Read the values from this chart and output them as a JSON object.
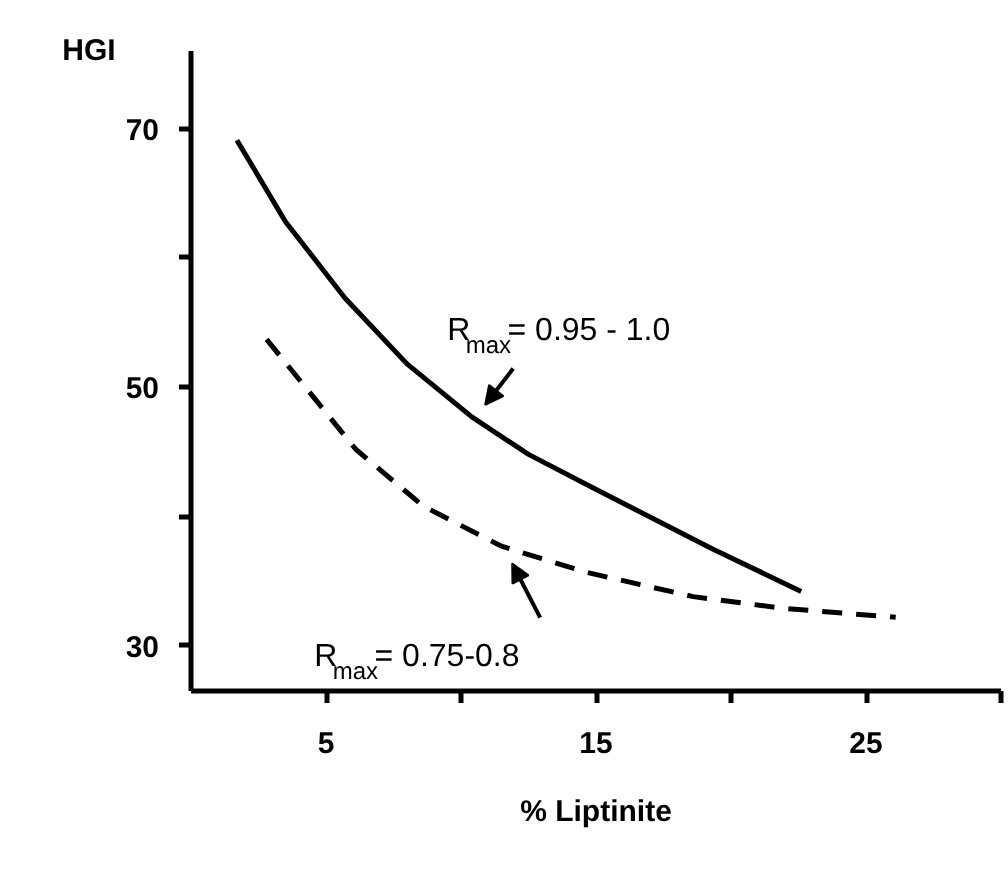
{
  "chart_data": {
    "type": "line",
    "xlabel": "% Liptinite",
    "ylabel": "HGI",
    "xlim": [
      0,
      30
    ],
    "ylim": [
      26.5,
      76
    ],
    "xticks": [
      5,
      {
        "value": 10,
        "label": null
      },
      15,
      {
        "value": 20,
        "label": null
      },
      25,
      {
        "value": 30,
        "label": null
      }
    ],
    "yticks": [
      {
        "value": 30,
        "label": "30"
      },
      {
        "value": 40,
        "label": null
      },
      50,
      {
        "value": 60,
        "label": null
      },
      70
    ],
    "grid": false,
    "series": [
      {
        "color": "#000000",
        "line_style": "solid",
        "x": [
          1.7,
          3.5,
          5.7,
          8,
          10.4,
          12.5,
          14.9,
          19.3,
          22.6
        ],
        "values": [
          69.1,
          62.8,
          56.9,
          51.8,
          47.7,
          44.8,
          42.2,
          37.5,
          34.2
        ]
      },
      {
        "color": "#000000",
        "line_style": "dashed",
        "x": [
          2.8,
          6.1,
          8.6,
          11.5,
          14.6,
          18.6,
          21.9,
          26.1
        ],
        "values": [
          53.7,
          45.2,
          40.8,
          37.7,
          35.7,
          33.8,
          32.9,
          32.2
        ]
      }
    ],
    "annotations": [
      {
        "text": "R$_{max}$= 0.95 - 1.0",
        "x": 10.6,
        "y": 47.4
      },
      {
        "text": "R$_{max}$= 0.75-0.8",
        "x": 11.6,
        "y": 37.6
      }
    ]
  }
}
